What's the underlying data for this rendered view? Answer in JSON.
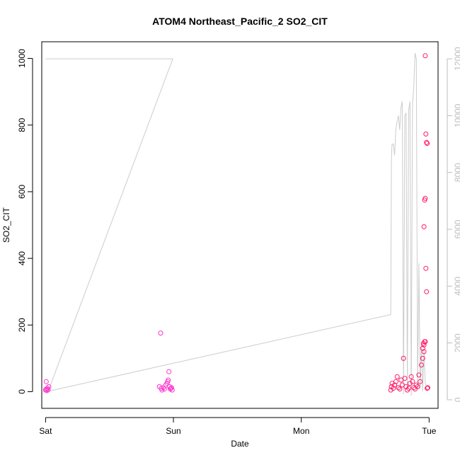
{
  "chart_data": {
    "type": "scatter",
    "title": "ATOM4 Northeast_Pacific_2 SO2_CIT",
    "xlabel": "Date",
    "ylabel": "SO2_CIT",
    "x_unit": "days from Sat 00:00",
    "xlim": [
      -0.03,
      3.07
    ],
    "ylim": [
      -50,
      1050
    ],
    "y2lim": [
      -300,
      12600
    ],
    "x_ticks": [
      {
        "value": 0,
        "label": "Sat"
      },
      {
        "value": 1,
        "label": "Sun"
      },
      {
        "value": 2,
        "label": "Mon"
      },
      {
        "value": 3,
        "label": "Tue"
      }
    ],
    "y_ticks": [
      0,
      200,
      400,
      600,
      800,
      1000
    ],
    "y2_ticks": [
      0,
      2000,
      4000,
      6000,
      8000,
      10000,
      12000
    ],
    "grid": false,
    "colors": {
      "line": "#cccccc",
      "points_a": "#ff33cc",
      "points_b": "#ff1a66",
      "axis": "#000000",
      "axis_right": "#bdbdbd"
    },
    "series": [
      {
        "kind": "line",
        "axis": "right",
        "color": "#cccccc",
        "x": [
          0.0,
          0.002,
          0.02,
          0.99,
          0.995,
          0.02,
          2.7,
          2.705,
          2.71,
          2.72,
          2.73,
          2.74,
          2.75,
          2.76,
          2.77,
          2.78,
          2.79,
          2.8,
          2.81,
          2.82,
          2.83,
          2.84,
          2.85,
          2.86,
          2.87,
          2.88,
          2.89,
          2.9,
          2.91,
          2.92,
          2.93,
          2.94,
          2.95,
          2.96,
          2.97,
          2.98
        ],
        "y": [
          12000,
          12000,
          12000,
          12000,
          12000,
          300,
          3000,
          8500,
          9000,
          9000,
          8600,
          9500,
          9800,
          10000,
          9500,
          10300,
          10500,
          200,
          10000,
          10100,
          400,
          10200,
          10500,
          150,
          10400,
          11000,
          12200,
          12000,
          400,
          4800,
          400,
          2000,
          300,
          1800,
          600,
          400
        ]
      },
      {
        "kind": "scatter",
        "axis": "left",
        "color": "#ff33cc",
        "x": [
          0.0,
          0.005,
          0.01,
          0.015,
          0.02,
          0.025,
          0.005,
          0.89,
          0.9,
          0.905,
          0.91,
          0.92,
          0.93,
          0.94,
          0.95,
          0.955,
          0.96,
          0.965,
          0.97,
          0.975,
          0.98,
          0.985,
          0.99
        ],
        "y": [
          5,
          8,
          3,
          10,
          6,
          15,
          30,
          15,
          176,
          10,
          5,
          12,
          8,
          20,
          25,
          30,
          35,
          60,
          15,
          8,
          10,
          12,
          5
        ]
      },
      {
        "kind": "scatter",
        "axis": "left",
        "color": "#ff1a66",
        "x": [
          2.7,
          2.705,
          2.71,
          2.72,
          2.73,
          2.74,
          2.75,
          2.76,
          2.77,
          2.78,
          2.79,
          2.8,
          2.81,
          2.82,
          2.83,
          2.84,
          2.85,
          2.86,
          2.87,
          2.88,
          2.89,
          2.9,
          2.91,
          2.92,
          2.93,
          2.94,
          2.95,
          2.96,
          2.965,
          2.97,
          2.975,
          2.98,
          2.985,
          2.97,
          2.965,
          2.96,
          2.955,
          2.95,
          2.96,
          2.97,
          2.975,
          2.98,
          2.985,
          2.99
        ],
        "y": [
          5,
          15,
          25,
          10,
          20,
          30,
          45,
          12,
          8,
          35,
          20,
          100,
          40,
          15,
          5,
          10,
          25,
          45,
          30,
          12,
          8,
          20,
          15,
          50,
          30,
          80,
          100,
          120,
          150,
          1008,
          773,
          748,
          745,
          580,
          575,
          495,
          145,
          130,
          140,
          150,
          370,
          300,
          10,
          12
        ]
      }
    ]
  }
}
